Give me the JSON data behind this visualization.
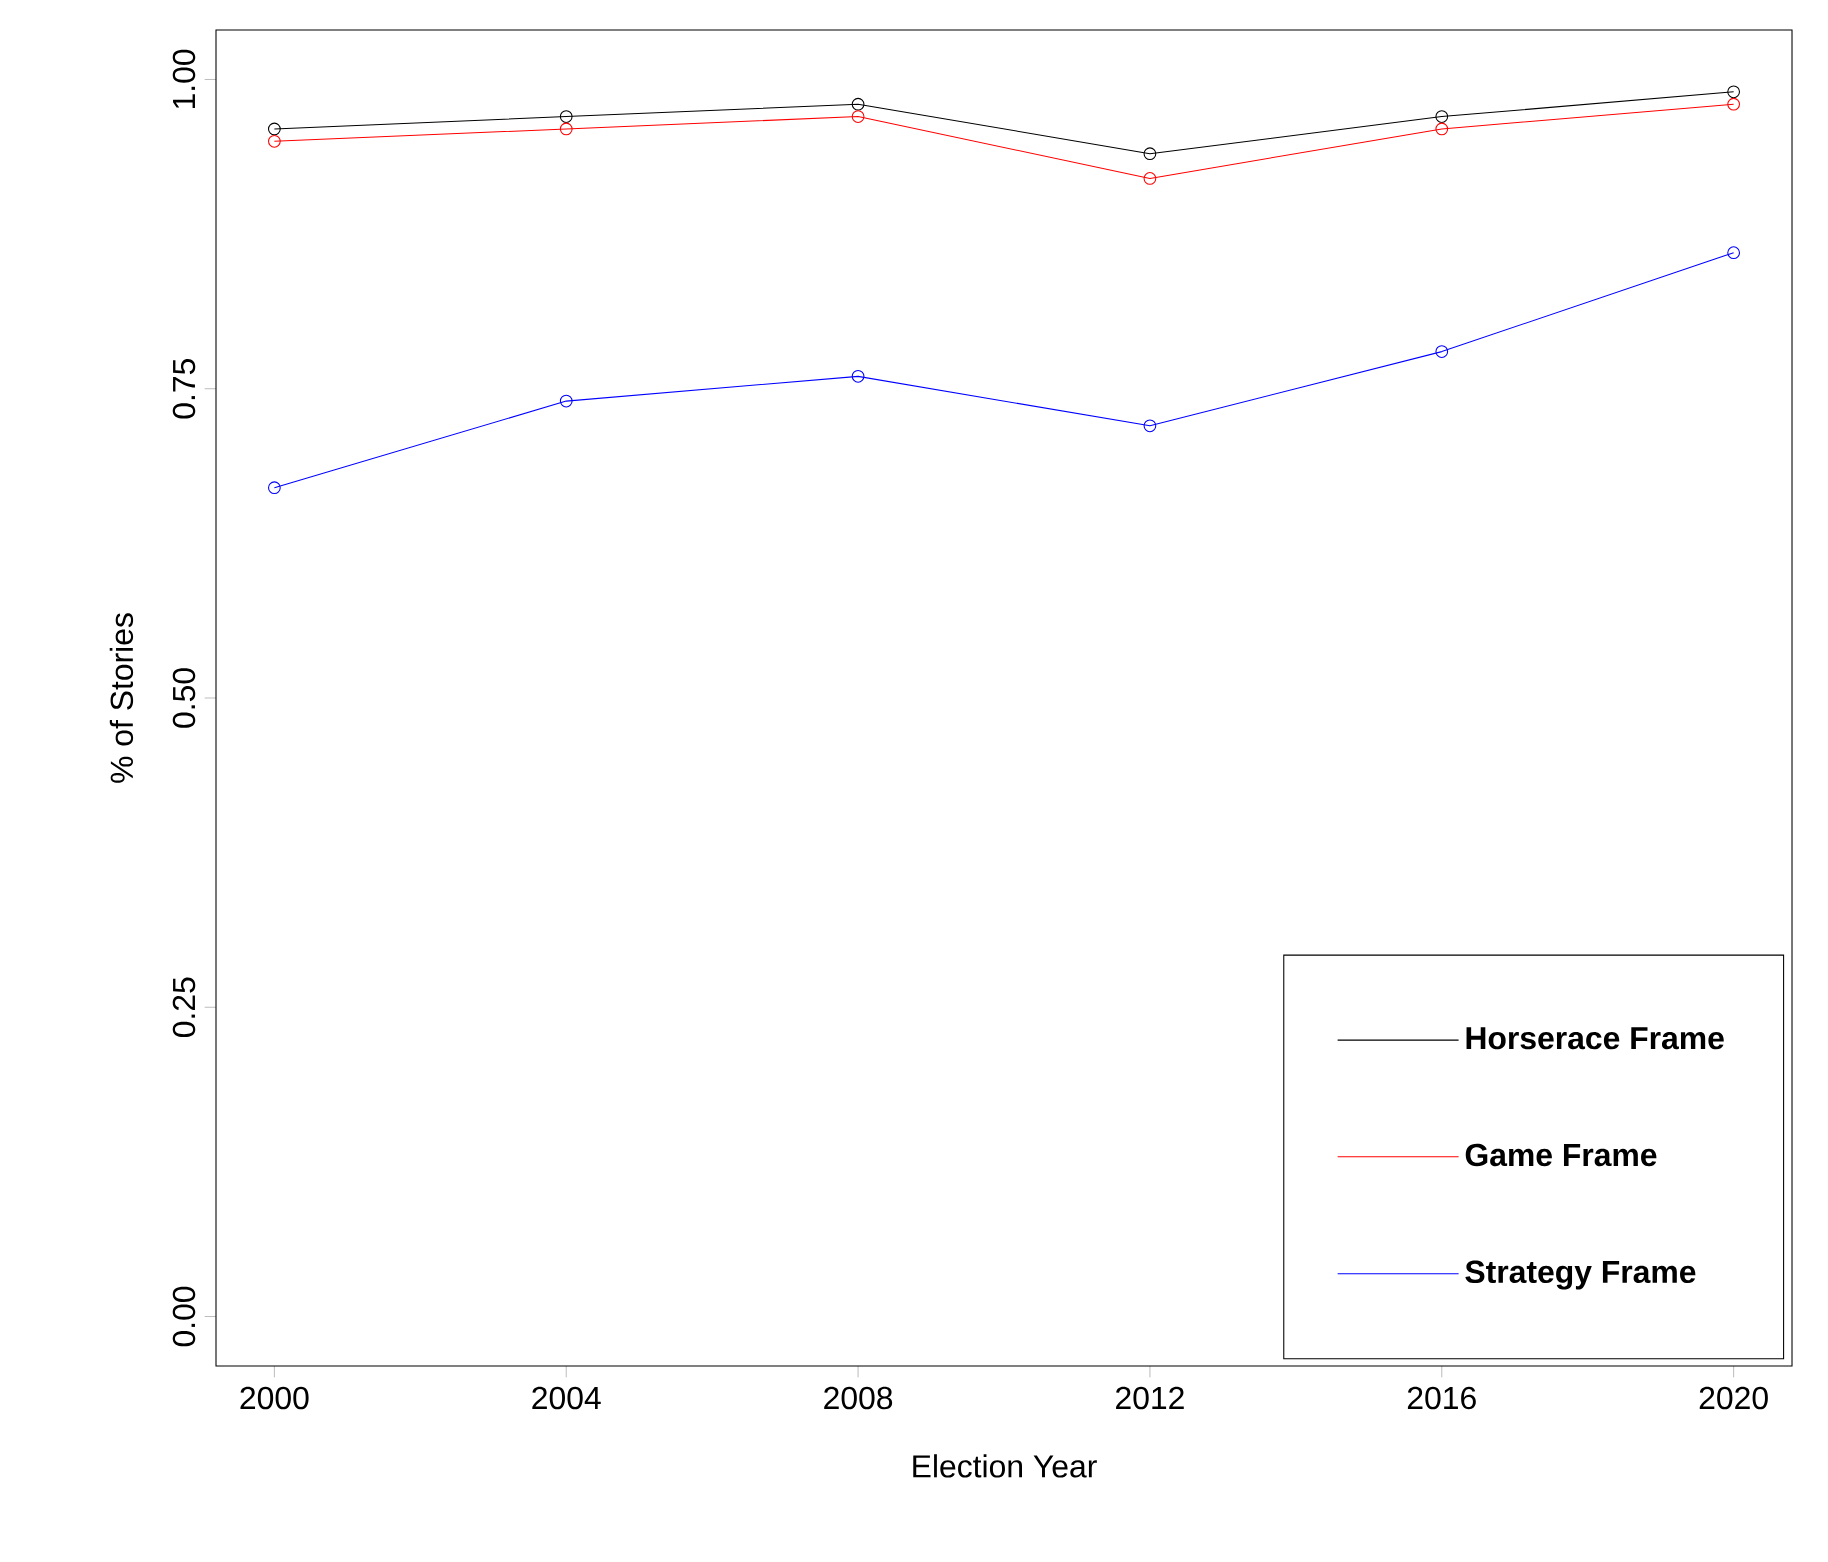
{
  "chart_data": {
    "type": "line",
    "xlabel": "Election Year",
    "ylabel": "% of Stories",
    "x": [
      2000,
      2004,
      2008,
      2012,
      2016,
      2020
    ],
    "series": [
      {
        "name": "Horserace Frame",
        "color": "#000000",
        "values": [
          0.96,
          0.97,
          0.98,
          0.94,
          0.97,
          0.99
        ]
      },
      {
        "name": "Game Frame",
        "color": "#ff0000",
        "values": [
          0.95,
          0.96,
          0.97,
          0.92,
          0.96,
          0.98
        ]
      },
      {
        "name": "Strategy Frame",
        "color": "#0000ff",
        "values": [
          0.67,
          0.74,
          0.76,
          0.72,
          0.78,
          0.86
        ]
      }
    ],
    "xlim": [
      1999.2,
      2020.8
    ],
    "ylim": [
      -0.04,
      1.04
    ],
    "xticks": [
      2000,
      2004,
      2008,
      2012,
      2016,
      2020
    ],
    "yticks": [
      {
        "value": 0,
        "label": "0.00"
      },
      {
        "value": 0.25,
        "label": "0.25"
      },
      {
        "value": 0.5,
        "label": "0.50"
      },
      {
        "value": 0.75,
        "label": "0.75"
      },
      {
        "value": 1,
        "label": "1.00"
      }
    ],
    "marker": "circle",
    "line_style": "solid",
    "legend": "bottom right",
    "grid": false
  }
}
